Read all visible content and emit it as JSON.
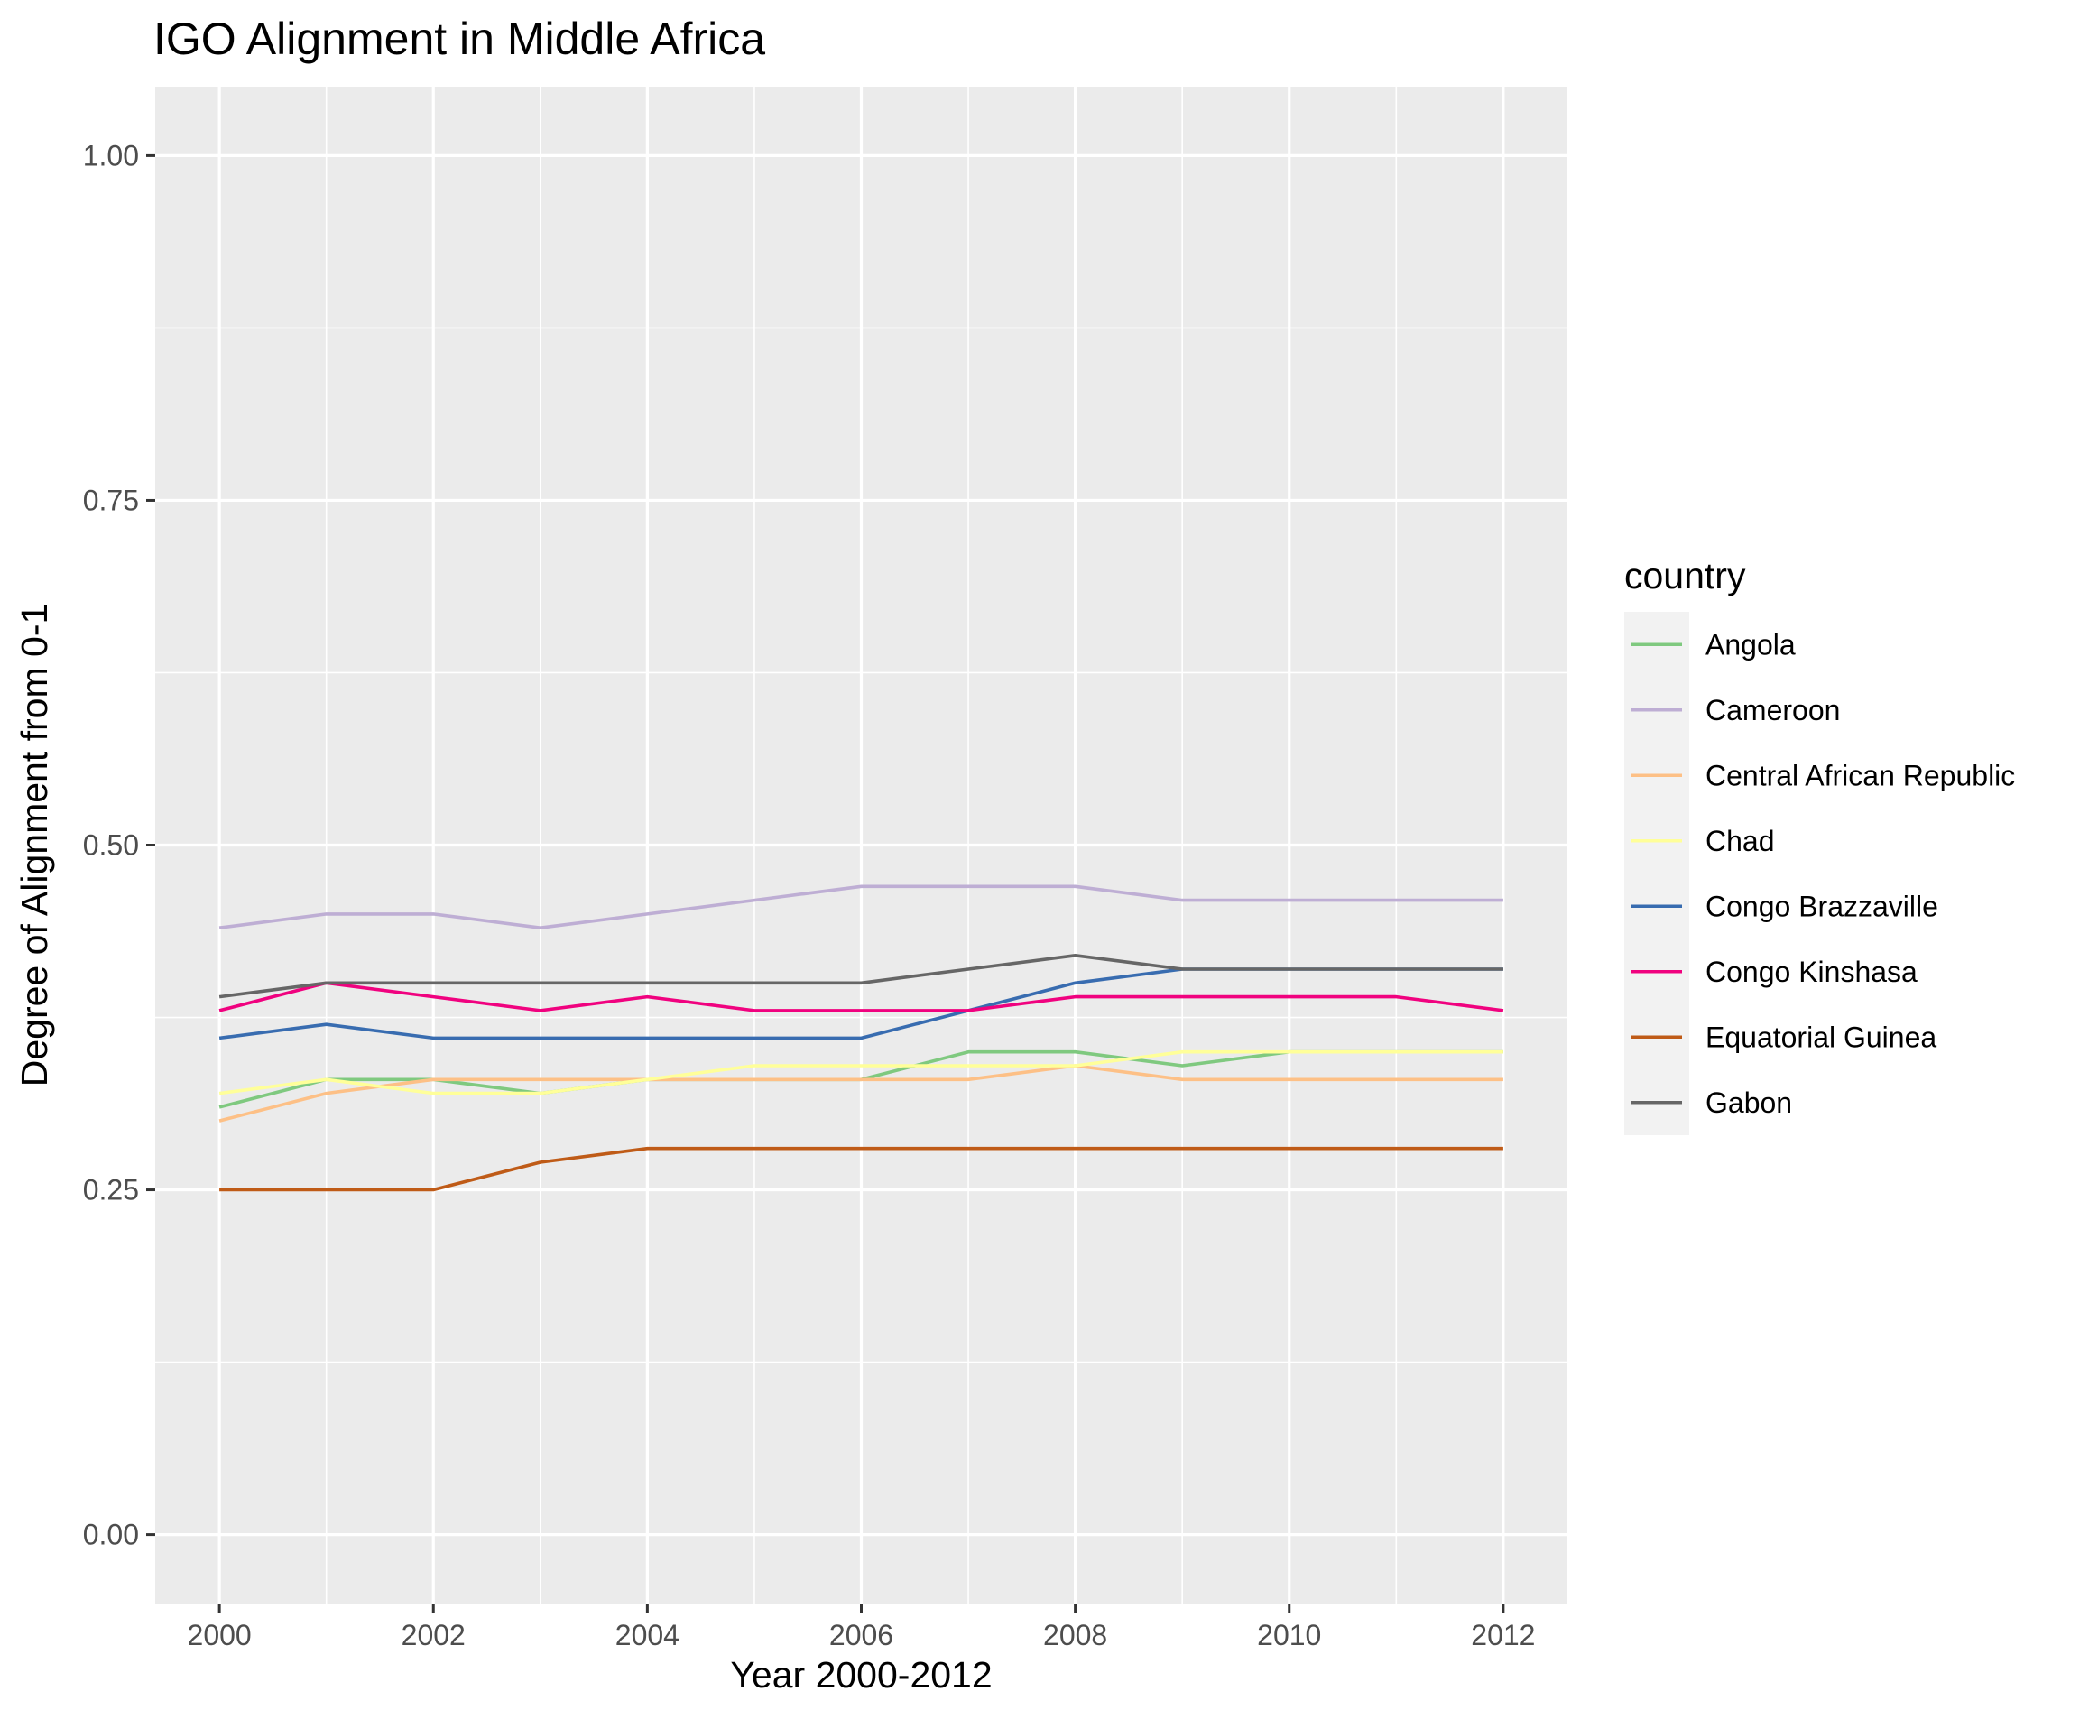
{
  "chart_data": {
    "type": "line",
    "title": "IGO Alignment in Middle Africa",
    "xlabel": "Year 2000-2012",
    "ylabel": "Degree of Alignment from 0-1",
    "xlim": [
      1999.4,
      2012.6
    ],
    "ylim": [
      -0.05,
      1.05
    ],
    "x_ticks": [
      2000,
      2002,
      2004,
      2006,
      2008,
      2010,
      2012
    ],
    "x_tick_labels": [
      "2000",
      "2002",
      "2004",
      "2006",
      "2008",
      "2010",
      "2012"
    ],
    "y_ticks": [
      0,
      0.25,
      0.5,
      0.75,
      1
    ],
    "y_tick_labels": [
      "0.00",
      "0.25",
      "0.50",
      "0.75",
      "1.00"
    ],
    "grid": true,
    "legend_title": "country",
    "legend_position": "right",
    "x": [
      2000,
      2001,
      2002,
      2003,
      2004,
      2005,
      2006,
      2007,
      2008,
      2009,
      2010,
      2011,
      2012
    ],
    "series": [
      {
        "name": "Angola",
        "color": "#7fc97f",
        "values": [
          0.31,
          0.33,
          0.33,
          0.32,
          0.33,
          0.33,
          0.33,
          0.35,
          0.35,
          0.34,
          0.35,
          0.35,
          0.35
        ]
      },
      {
        "name": "Cameroon",
        "color": "#beaed4",
        "values": [
          0.44,
          0.45,
          0.45,
          0.44,
          0.45,
          0.46,
          0.47,
          0.47,
          0.47,
          0.46,
          0.46,
          0.46,
          0.46
        ]
      },
      {
        "name": "Central African Republic",
        "color": "#fdc086",
        "values": [
          0.3,
          0.32,
          0.33,
          0.33,
          0.33,
          0.33,
          0.33,
          0.33,
          0.34,
          0.33,
          0.33,
          0.33,
          0.33
        ]
      },
      {
        "name": "Chad",
        "color": "#ffff99",
        "values": [
          0.32,
          0.33,
          0.32,
          0.32,
          0.33,
          0.34,
          0.34,
          0.34,
          0.34,
          0.35,
          0.35,
          0.35,
          0.35
        ]
      },
      {
        "name": "Congo Brazzaville",
        "color": "#386cb0",
        "values": [
          0.36,
          0.37,
          0.36,
          0.36,
          0.36,
          0.36,
          0.36,
          0.38,
          0.4,
          0.41,
          0.41,
          0.41,
          0.41
        ]
      },
      {
        "name": "Congo Kinshasa",
        "color": "#f0027f",
        "values": [
          0.38,
          0.4,
          0.39,
          0.38,
          0.39,
          0.38,
          0.38,
          0.38,
          0.39,
          0.39,
          0.39,
          0.39,
          0.38
        ]
      },
      {
        "name": "Equatorial Guinea",
        "color": "#bf5b17",
        "values": [
          0.25,
          0.25,
          0.25,
          0.27,
          0.28,
          0.28,
          0.28,
          0.28,
          0.28,
          0.28,
          0.28,
          0.28,
          0.28
        ]
      },
      {
        "name": "Gabon",
        "color": "#666666",
        "values": [
          0.39,
          0.4,
          0.4,
          0.4,
          0.4,
          0.4,
          0.4,
          0.41,
          0.42,
          0.41,
          0.41,
          0.41,
          0.41
        ]
      }
    ]
  }
}
